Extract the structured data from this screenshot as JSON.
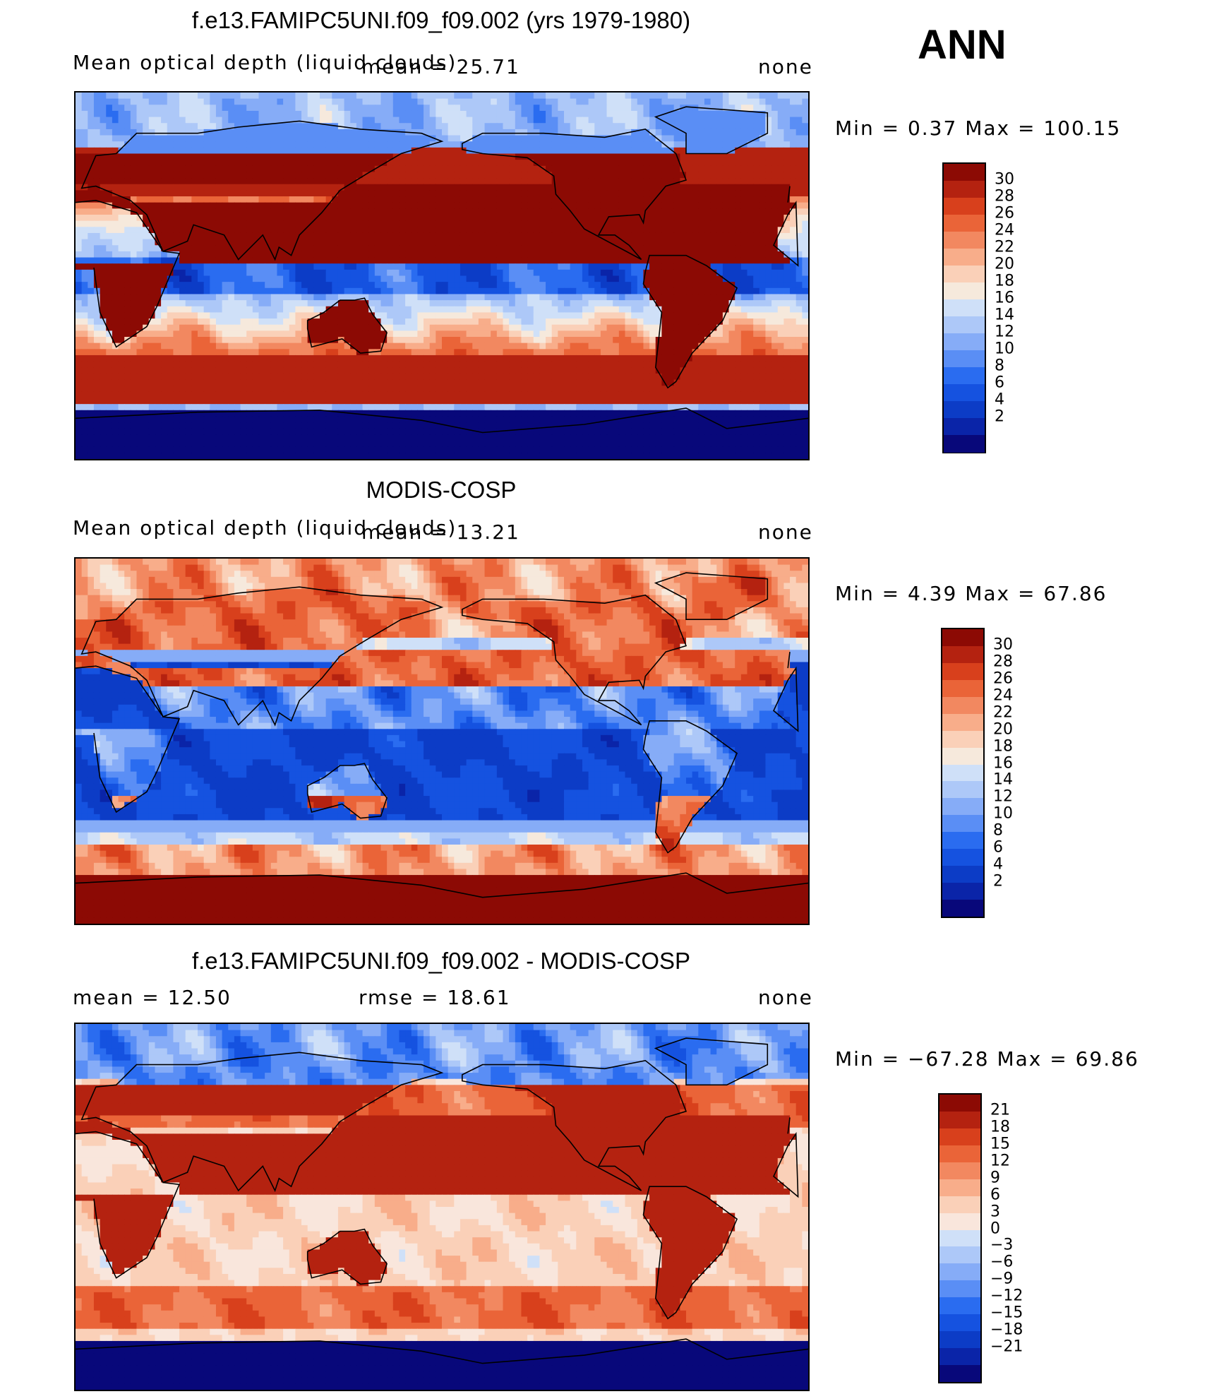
{
  "season": "ANN",
  "colors": {
    "abs_scale": [
      "#08087a",
      "#0a24a8",
      "#0c3cc6",
      "#1552e0",
      "#2a6cf0",
      "#5a8ef5",
      "#86acf7",
      "#adc8f8",
      "#cfe0f8",
      "#f6e9dc",
      "#fad0b8",
      "#f8ad8a",
      "#f28860",
      "#ea6438",
      "#d8401c",
      "#b42210",
      "#8c0a04"
    ],
    "diff_scale": [
      "#08087a",
      "#0a24a8",
      "#0c3cc6",
      "#1552e0",
      "#2a6cf0",
      "#5a8ef5",
      "#86acf7",
      "#adc8f8",
      "#cfe0f8",
      "#f9e6dc",
      "#fad0b8",
      "#f8ad8a",
      "#f28860",
      "#ea6438",
      "#d8401c",
      "#b42210",
      "#8c0a04"
    ],
    "land_outline": "#000000"
  },
  "panels": [
    {
      "title": "f.e13.FAMIPC5UNI.f09_f09.002 (yrs 1979-1980)",
      "left_label": "Mean optical depth (liquid clouds)",
      "mid_label": "mean =   25.71",
      "right_label": "none",
      "minmax": "Min =    0.37 Max =  100.15",
      "ticks": [
        "30",
        "28",
        "26",
        "24",
        "22",
        "20",
        "18",
        "16",
        "14",
        "12",
        "10",
        "8",
        "6",
        "4",
        "2"
      ],
      "pattern": "model"
    },
    {
      "title": "MODIS-COSP",
      "left_label": "Mean optical depth (liquid clouds)",
      "mid_label": "mean =   13.21",
      "right_label": "none",
      "minmax": "Min =    4.39 Max =   67.86",
      "ticks": [
        "30",
        "28",
        "26",
        "24",
        "22",
        "20",
        "18",
        "16",
        "14",
        "12",
        "10",
        "8",
        "6",
        "4",
        "2"
      ],
      "pattern": "obs"
    },
    {
      "title": "f.e13.FAMIPC5UNI.f09_f09.002 - MODIS-COSP",
      "left_label": "mean =    12.50",
      "mid_label": "rmse =    18.61",
      "right_label": "none",
      "minmax": "Min = −67.28 Max =   69.86",
      "ticks": [
        "21",
        "18",
        "15",
        "12",
        "9",
        "6",
        "3",
        "0",
        "−3",
        "−6",
        "−9",
        "−12",
        "−15",
        "−18",
        "−21"
      ],
      "pattern": "diff"
    }
  ],
  "chart_data": [
    {
      "type": "heatmap",
      "title": "f.e13.FAMIPC5UNI.f09_f09.002 (yrs 1979-1980)",
      "variable": "Mean optical depth (liquid clouds)",
      "units": "none",
      "mean": 25.71,
      "min": 0.37,
      "max": 100.15,
      "contour_levels": [
        2,
        4,
        6,
        8,
        10,
        12,
        14,
        16,
        18,
        20,
        22,
        24,
        26,
        28,
        30
      ]
    },
    {
      "type": "heatmap",
      "title": "MODIS-COSP",
      "variable": "Mean optical depth (liquid clouds)",
      "units": "none",
      "mean": 13.21,
      "min": 4.39,
      "max": 67.86,
      "contour_levels": [
        2,
        4,
        6,
        8,
        10,
        12,
        14,
        16,
        18,
        20,
        22,
        24,
        26,
        28,
        30
      ]
    },
    {
      "type": "heatmap",
      "title": "f.e13.FAMIPC5UNI.f09_f09.002 - MODIS-COSP",
      "units": "none",
      "mean": 12.5,
      "rmse": 18.61,
      "min": -67.28,
      "max": 69.86,
      "contour_levels": [
        -21,
        -18,
        -15,
        -12,
        -9,
        -6,
        -3,
        0,
        3,
        6,
        9,
        12,
        15,
        18,
        21
      ]
    }
  ]
}
